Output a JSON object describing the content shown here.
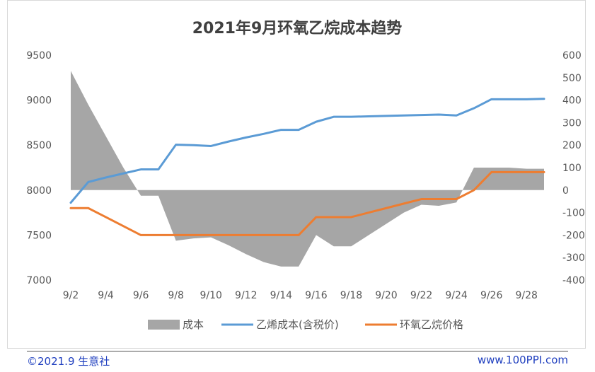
{
  "chart_data": {
    "type": "line",
    "title": "2021年9月环氧乙烷成本趋势",
    "x": [
      "9/2",
      "9/3",
      "9/4",
      "9/5",
      "9/6",
      "9/7",
      "9/8",
      "9/9",
      "9/10",
      "9/11",
      "9/12",
      "9/13",
      "9/14",
      "9/15",
      "9/16",
      "9/17",
      "9/18",
      "9/19",
      "9/20",
      "9/21",
      "9/22",
      "9/23",
      "9/24",
      "9/25",
      "9/26",
      "9/27",
      "9/28",
      "9/29"
    ],
    "x_tick_labels": [
      "9/2",
      "9/4",
      "9/6",
      "9/8",
      "9/10",
      "9/12",
      "9/14",
      "9/16",
      "9/18",
      "9/20",
      "9/22",
      "9/24",
      "9/26",
      "9/28"
    ],
    "y_left": {
      "min": 7000,
      "max": 9500,
      "ticks": [
        7000,
        7500,
        8000,
        8500,
        9000,
        9500
      ]
    },
    "y_right": {
      "min": -400,
      "max": 600,
      "ticks": [
        -400,
        -300,
        -200,
        -100,
        0,
        100,
        200,
        300,
        400,
        500,
        600
      ]
    },
    "grid": false,
    "legend_position": "bottom",
    "series": [
      {
        "name": "成本",
        "kind": "area",
        "axis": "right",
        "color": "#a6a6a6",
        "values": [
          530,
          380,
          240,
          100,
          -25,
          -25,
          -225,
          -215,
          -210,
          -245,
          -285,
          -320,
          -340,
          -340,
          -200,
          -250,
          -250,
          -200,
          -150,
          -100,
          -65,
          -70,
          -55,
          100,
          100,
          100,
          95,
          95
        ]
      },
      {
        "name": "乙烯成本(含税价)",
        "kind": "line",
        "axis": "left",
        "color": "#5b9bd5",
        "values": [
          7860,
          8090,
          8140,
          8185,
          8230,
          8230,
          8505,
          8500,
          8490,
          8540,
          8585,
          8625,
          8670,
          8670,
          8760,
          8815,
          8815,
          8820,
          8825,
          8830,
          8835,
          8840,
          8830,
          8910,
          9010,
          9010,
          9010,
          9015
        ]
      },
      {
        "name": "环氧乙烷价格",
        "kind": "line",
        "axis": "left",
        "color": "#ed7d31",
        "values": [
          7800,
          7800,
          7700,
          7600,
          7500,
          7500,
          7500,
          7500,
          7500,
          7500,
          7500,
          7500,
          7500,
          7500,
          7700,
          7700,
          7700,
          7750,
          7800,
          7850,
          7900,
          7900,
          7900,
          8000,
          8200,
          8200,
          8200,
          8200
        ]
      }
    ]
  },
  "footer": {
    "left": "©2021.9  生意社",
    "right": "www.100PPI.com"
  }
}
